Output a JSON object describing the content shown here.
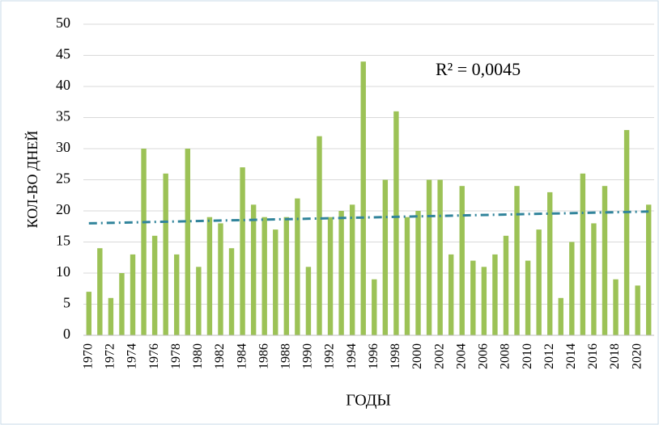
{
  "chart_data": {
    "type": "bar",
    "ylabel": "КОЛ-ВО ДНЕЙ",
    "xlabel": "ГОДЫ",
    "annotation": "R² = 0,0045",
    "categories": [
      "1970",
      null,
      "1972",
      null,
      "1974",
      null,
      "1976",
      null,
      "1978",
      null,
      "1980",
      null,
      "1982",
      null,
      "1984",
      null,
      "1986",
      null,
      "1988",
      null,
      "1990",
      null,
      "1992",
      null,
      "1994",
      null,
      "1996",
      null,
      "1998",
      null,
      "2000",
      null,
      "2002",
      null,
      "2004",
      null,
      "2006",
      null,
      "2008",
      null,
      "2010",
      null,
      "2012",
      null,
      "2014",
      null,
      "2016",
      null,
      "2018",
      null,
      "2020",
      null
    ],
    "values": [
      7,
      14,
      6,
      10,
      13,
      30,
      16,
      26,
      13,
      30,
      11,
      19,
      18,
      14,
      27,
      21,
      19,
      17,
      19,
      22,
      11,
      32,
      19,
      20,
      21,
      44,
      9,
      25,
      36,
      19,
      20,
      25,
      25,
      13,
      24,
      12,
      11,
      13,
      16,
      24,
      12,
      17,
      23,
      6,
      15,
      26,
      18,
      24,
      9,
      33,
      8,
      21
    ],
    "color": "#9cc256",
    "trendline": {
      "values": [
        18.0,
        19.9
      ],
      "color": "#31849b"
    },
    "ylim": [
      0,
      50
    ],
    "yticks": [
      0,
      5,
      10,
      15,
      20,
      25,
      30,
      35,
      40,
      45,
      50
    ],
    "grid": true
  }
}
